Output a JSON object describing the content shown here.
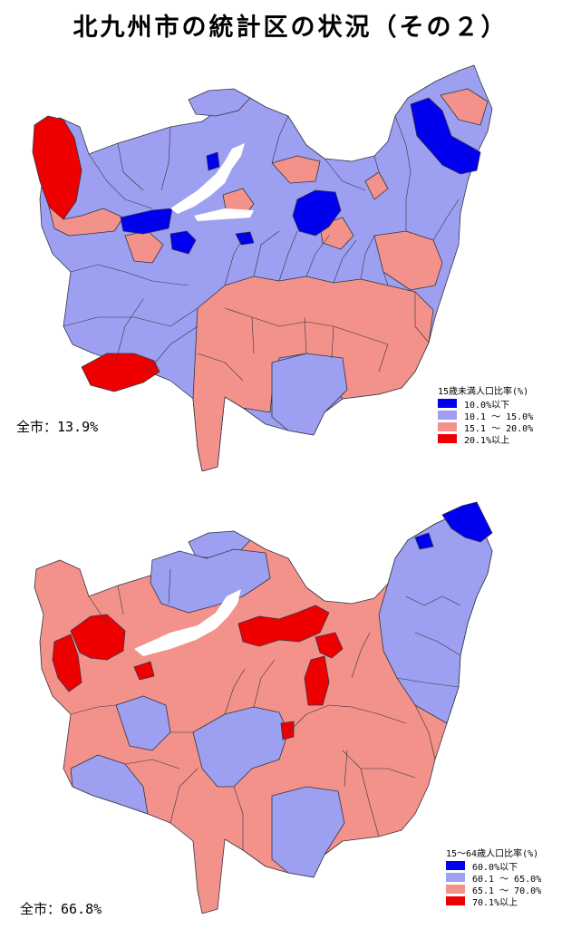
{
  "title": "北九州市の統計区の状況（その２）",
  "colors": {
    "dark_blue": "#0000ee",
    "light_blue": "#9da0f0",
    "salmon": "#f3928a",
    "red": "#ee0000",
    "border": "#333344"
  },
  "maps": [
    {
      "legend_title": "15歳未満人口比率(%)",
      "classes": [
        {
          "label": "10.0%以下",
          "color": "#0000ee"
        },
        {
          "label": "10.1 ～ 15.0%",
          "color": "#9da0f0"
        },
        {
          "label": "15.1 ～ 20.0%",
          "color": "#f3928a"
        },
        {
          "label": "20.1%以上",
          "color": "#ee0000"
        }
      ],
      "whole_city": "全市：13.9%"
    },
    {
      "legend_title": "15～64歳人口比率(%)",
      "classes": [
        {
          "label": "60.0%以下",
          "color": "#0000ee"
        },
        {
          "label": "60.1 ～ 65.0%",
          "color": "#9da0f0"
        },
        {
          "label": "65.1 ～ 70.0%",
          "color": "#f3928a"
        },
        {
          "label": "70.1%以上",
          "color": "#ee0000"
        }
      ],
      "whole_city": "全市：66.8%"
    }
  ]
}
